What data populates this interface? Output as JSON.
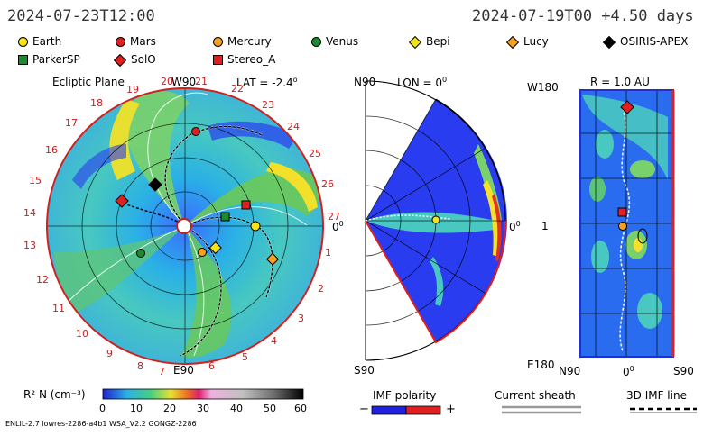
{
  "header": {
    "left_date": "2024-07-23T12:00",
    "right_date": "2024-07-19T00 +4.50 days"
  },
  "legend": [
    {
      "label": "Earth",
      "shape": "circle",
      "color": "#f5e31a"
    },
    {
      "label": "Mars",
      "shape": "circle",
      "color": "#e02020"
    },
    {
      "label": "Mercury",
      "shape": "circle",
      "color": "#f5a020"
    },
    {
      "label": "Venus",
      "shape": "circle",
      "color": "#1e8a2e"
    },
    {
      "label": "Bepi",
      "shape": "diamond",
      "color": "#f5e31a"
    },
    {
      "label": "Lucy",
      "shape": "diamond",
      "color": "#f5a020"
    },
    {
      "label": "OSIRIS-APEX",
      "shape": "diamond",
      "color": "#000000"
    },
    {
      "label": "ParkerSP",
      "shape": "square",
      "color": "#1e8a2e"
    },
    {
      "label": "SolO",
      "shape": "diamond",
      "color": "#e02020"
    },
    {
      "label": "Stereo_A",
      "shape": "square",
      "color": "#e02020"
    }
  ],
  "ecliptic": {
    "title": "Ecliptic Plane",
    "top": "W90",
    "bottom": "E90",
    "right": "0",
    "lat": "LAT = -2.4",
    "carrington": [
      "1",
      "2",
      "3",
      "4",
      "5",
      "6",
      "7",
      "8",
      "9",
      "10",
      "11",
      "12",
      "13",
      "14",
      "15",
      "16",
      "17",
      "18",
      "19",
      "20",
      "21",
      "22",
      "23",
      "24",
      "25",
      "26",
      "27"
    ]
  },
  "meridional": {
    "top": "N90",
    "bottom": "S90",
    "lon": "LON = 0",
    "right": "0"
  },
  "radial": {
    "title": "R = 1.0 AU",
    "top_left": "W180",
    "bottom_left": "E180",
    "mid_left": "1",
    "bottom_labels": [
      "N90",
      "0",
      "S90"
    ]
  },
  "colorbar": {
    "label": "R² N (cm⁻³)",
    "ticks": [
      "0",
      "10",
      "20",
      "30",
      "40",
      "50",
      "60"
    ]
  },
  "imf": {
    "title": "IMF polarity",
    "minus": "−",
    "plus": "+"
  },
  "current_sheath": {
    "title": "Current sheath"
  },
  "imf_line": {
    "title": "3D IMF line"
  },
  "footer": {
    "model": "ENLIL-2.7 lowres-2286-a4b1 WSA_V2.2 GONGZ-2286"
  }
}
